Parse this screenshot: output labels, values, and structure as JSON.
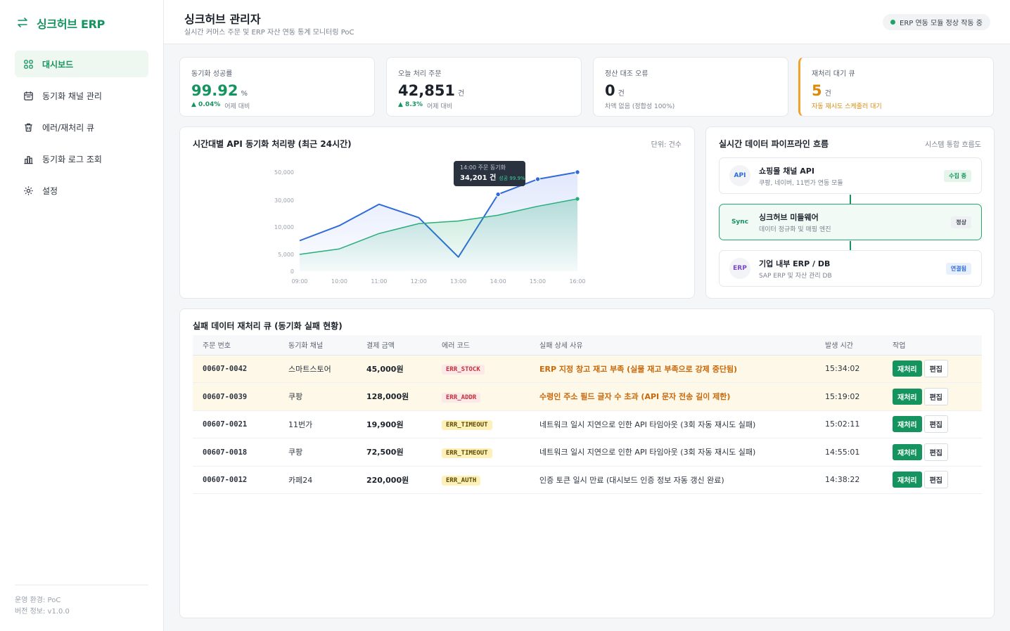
{
  "app": {
    "logo_text": "싱크허브 ERP",
    "logo_icon": "sync-arrows-icon"
  },
  "sidebar": {
    "items": [
      {
        "label": "대시보드",
        "icon": "grid-icon",
        "active": true
      },
      {
        "label": "동기화 채널 관리",
        "icon": "calendar-icon",
        "active": false
      },
      {
        "label": "에러/재처리 큐",
        "icon": "trash-icon",
        "active": false
      },
      {
        "label": "동기화 로그 조회",
        "icon": "bar-chart-icon",
        "active": false
      },
      {
        "label": "설정",
        "icon": "gear-icon",
        "active": false
      }
    ],
    "footer": {
      "env": "운영 환경: PoC",
      "version": "버전 정보: v1.0.0"
    }
  },
  "header": {
    "title": "싱크허브 관리자",
    "subtitle": "실시간 커머스 주문 및 ERP 자산 연동 통계 모니터링 PoC",
    "status": "ERP 연동 모듈 정상 작동 중"
  },
  "kpis": [
    {
      "label": "동기화 성공률",
      "value": "99.92",
      "unit": "%",
      "delta": "▲ 0.04%",
      "foot": "어제 대비",
      "style": "green"
    },
    {
      "label": "오늘 처리 주문",
      "value": "42,851",
      "unit": "건",
      "delta": "▲ 8.3%",
      "foot": "어제 대비",
      "style": "normal"
    },
    {
      "label": "정산 대조 오류",
      "value": "0",
      "unit": "건",
      "delta": "",
      "foot": "차액 없음 (정합성 100%)",
      "style": "normal"
    },
    {
      "label": "재처리 대기 큐",
      "value": "5",
      "unit": "건",
      "delta": "",
      "foot": "자동 재시도 스케줄러 대기",
      "style": "orange"
    }
  ],
  "chart_panel": {
    "title": "시간대별 API 동기화 처리량 (최근 24시간)",
    "unit_note": "단위: 건수"
  },
  "chart_data": {
    "type": "line",
    "x": [
      "09:00",
      "10:00",
      "11:00",
      "12:00",
      "13:00",
      "14:00",
      "15:00",
      "16:00"
    ],
    "y_ticks": [
      "0",
      "5,000",
      "10,000",
      "30,000",
      "50,000"
    ],
    "series": [
      {
        "name": "주문 동기화",
        "color": "#2f6bd8",
        "values": [
          7500,
          11000,
          27000,
          17000,
          4200,
          34201,
          45000,
          50000
        ]
      },
      {
        "name": "성공",
        "color": "#27ae7a",
        "values": [
          5000,
          6000,
          8800,
          12500,
          14500,
          18800,
          25500,
          31000
        ]
      }
    ],
    "tooltip": {
      "title": "14:00 주문 동기화",
      "value": "34,201 건",
      "sub": "성공 99.9%"
    }
  },
  "pipeline": {
    "title": "실시간 데이터 파이프라인 흐름",
    "note": "시스템 통합 흐름도",
    "nodes": [
      {
        "badge": "API",
        "name": "쇼핑몰 채널 API",
        "desc": "쿠팡, 네이버, 11번가 연동 모듈",
        "tag": "수집 중"
      },
      {
        "badge": "Sync",
        "name": "싱크허브 미들웨어",
        "desc": "데이터 정규화 및 매핑 엔진",
        "tag": "정상"
      },
      {
        "badge": "ERP",
        "name": "기업 내부 ERP / DB",
        "desc": "SAP ERP 및 자산 관리 DB",
        "tag": "연결됨"
      }
    ]
  },
  "queue": {
    "title": "실패 데이터 재처리 큐 (동기화 실패 현황)",
    "columns": [
      "주문 번호",
      "동기화 채널",
      "결제 금액",
      "에러 코드",
      "실패 상세 사유",
      "발생 시간",
      "작업"
    ],
    "retry_label": "재처리",
    "edit_label": "편집",
    "rows": [
      {
        "id": "00607-0042",
        "channel": "스마트스토어",
        "amount": "45,000원",
        "code": "ERR_STOCK",
        "reason": "ERP 지정 창고 재고 부족 (실물 재고 부족으로 강제 중단됨)",
        "time": "15:34:02",
        "severity": "high"
      },
      {
        "id": "00607-0039",
        "channel": "쿠팡",
        "amount": "128,000원",
        "code": "ERR_ADDR",
        "reason": "수령인 주소 필드 글자 수 초과 (API 문자 전송 길이 제한)",
        "time": "15:19:02",
        "severity": "high"
      },
      {
        "id": "00607-0021",
        "channel": "11번가",
        "amount": "19,900원",
        "code": "ERR_TIMEOUT",
        "reason": "네트워크 일시 지연으로 인한 API 타임아웃 (3회 자동 재시도 실패)",
        "time": "15:02:11",
        "severity": "low"
      },
      {
        "id": "00607-0018",
        "channel": "쿠팡",
        "amount": "72,500원",
        "code": "ERR_TIMEOUT",
        "reason": "네트워크 일시 지연으로 인한 API 타임아웃 (3회 자동 재시도 실패)",
        "time": "14:55:01",
        "severity": "low"
      },
      {
        "id": "00607-0012",
        "channel": "카페24",
        "amount": "220,000원",
        "code": "ERR_AUTH",
        "reason": "인증 토큰 일시 만료 (대시보드 인증 정보 자동 갱신 완료)",
        "time": "14:38:22",
        "severity": "low"
      }
    ]
  }
}
